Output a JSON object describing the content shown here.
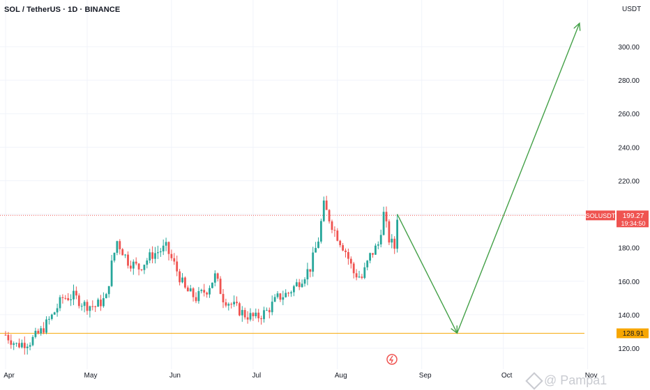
{
  "header": {
    "title": "SOL / TetherUS · 1D · BINANCE",
    "currency": "USDT"
  },
  "watermark": {
    "text": "@ Pampa1"
  },
  "price_label": {
    "symbol": "SOLUSDT",
    "price": "199.27",
    "countdown": "19:34:50"
  },
  "level_label": {
    "price": "128.91"
  },
  "colors": {
    "up": "#26a69a",
    "down": "#ef5350",
    "arrow": "#43a047",
    "level": "#f7a600",
    "grid": "#f0f3fa"
  },
  "chart_data": {
    "type": "candlestick",
    "title": "SOL / TetherUS · 1D · BINANCE",
    "y_axis": {
      "ticks": [
        120,
        140,
        160,
        180,
        200,
        220,
        240,
        260,
        280,
        300
      ],
      "range": [
        116,
        320
      ]
    },
    "x_axis": {
      "ticks": [
        "Apr",
        "May",
        "Jun",
        "Jul",
        "Aug",
        "Sep",
        "Oct",
        "Nov"
      ]
    },
    "current_price": 199.27,
    "horizontal_level": 128.91,
    "close_path": [
      [
        "Apr 01",
        128
      ],
      [
        "Apr 05",
        122
      ],
      [
        "Apr 10",
        124
      ],
      [
        "Apr 14",
        130
      ],
      [
        "Apr 18",
        139
      ],
      [
        "Apr 22",
        150
      ],
      [
        "Apr 26",
        151
      ],
      [
        "Apr 30",
        146
      ],
      [
        "May 04",
        145
      ],
      [
        "May 08",
        150
      ],
      [
        "May 10",
        170
      ],
      [
        "May 12",
        184
      ],
      [
        "May 16",
        172
      ],
      [
        "May 20",
        168
      ],
      [
        "May 25",
        176
      ],
      [
        "May 30",
        180
      ],
      [
        "Jun 02",
        170
      ],
      [
        "Jun 06",
        155
      ],
      [
        "Jun 10",
        150
      ],
      [
        "Jun 14",
        155
      ],
      [
        "Jun 17",
        163
      ],
      [
        "Jun 20",
        150
      ],
      [
        "Jun 24",
        145
      ],
      [
        "Jun 28",
        140
      ],
      [
        "Jul 02",
        138
      ],
      [
        "Jul 06",
        142
      ],
      [
        "Jul 10",
        150
      ],
      [
        "Jul 14",
        153
      ],
      [
        "Jul 18",
        160
      ],
      [
        "Jul 22",
        168
      ],
      [
        "Jul 25",
        185
      ],
      [
        "Jul 27",
        205
      ],
      [
        "Jul 31",
        190
      ],
      [
        "Aug 04",
        178
      ],
      [
        "Aug 07",
        165
      ],
      [
        "Aug 10",
        162
      ],
      [
        "Aug 13",
        175
      ],
      [
        "Aug 16",
        182
      ],
      [
        "Aug 18",
        200
      ],
      [
        "Aug 20",
        185
      ],
      [
        "Aug 22",
        180
      ],
      [
        "Aug 23",
        199
      ]
    ],
    "annotations": [
      {
        "type": "arrow",
        "from": [
          "Aug 23",
          200
        ],
        "to": [
          "Sep 14",
          129
        ]
      },
      {
        "type": "arrow",
        "from": [
          "Sep 14",
          129
        ],
        "to": [
          "Oct 29",
          314
        ]
      }
    ]
  }
}
